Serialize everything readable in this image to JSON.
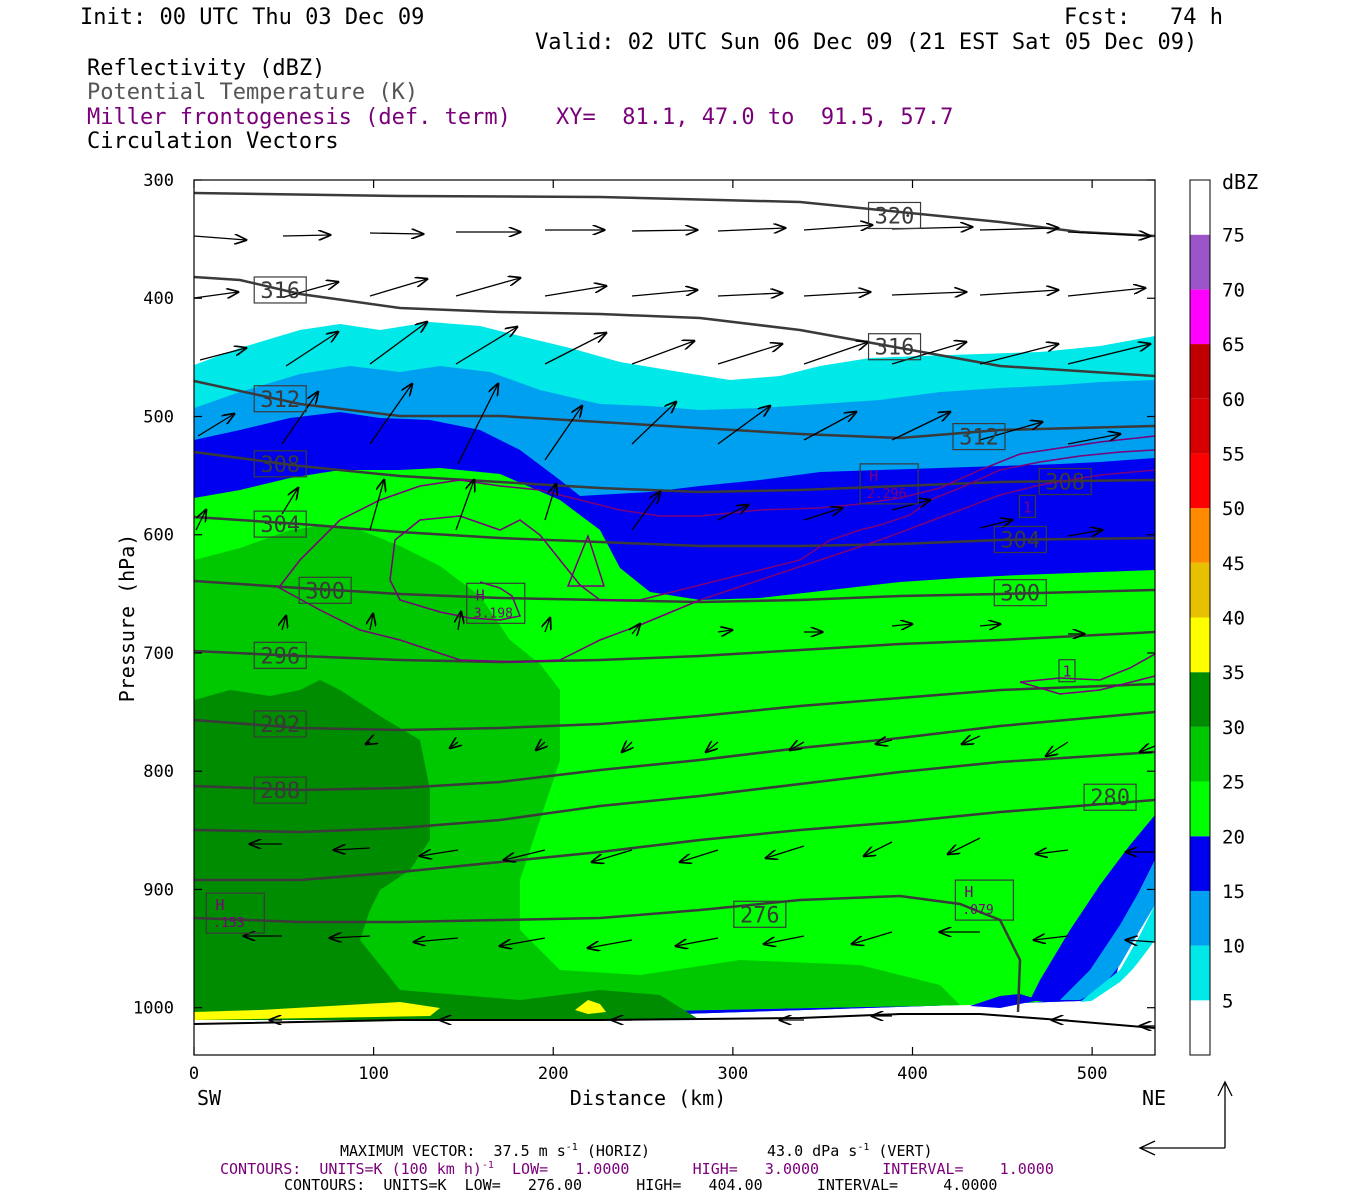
{
  "header": {
    "init": "Init: 00 UTC Thu 03 Dec 09",
    "fcst": "Fcst:   74 h",
    "valid": "Valid: 02 UTC Sun 06 Dec 09 (21 EST Sat 05 Dec 09)",
    "fields": [
      "Reflectivity (dBZ)",
      "Potential Temperature (K)",
      "Miller frontogenesis (def. term)",
      "Circulation Vectors"
    ],
    "xy": "XY=  81.1, 47.0 to  91.5, 57.7"
  },
  "footer": {
    "max_vector": "MAXIMUM VECTOR:  37.5 m s",
    "max_vector_sup": "-1",
    "max_vector_horiz": " (HORIZ)",
    "max_vector_vert": "43.0 dPa s",
    "max_vector_vert_sup": "-1",
    "max_vector_vert_tail": " (VERT)",
    "contours_fronto": "CONTOURS:  UNITS=K (100 km h)",
    "contours_fronto_sup": "-1",
    "contours_fronto_tail": "  LOW=   1.0000       HIGH=   3.0000       INTERVAL=    1.0000",
    "contours_theta": "CONTOURS:  UNITS=K  LOW=   276.00      HIGH=   404.00      INTERVAL=     4.0000"
  },
  "colors": {
    "theta": "#3a3a3a",
    "fronto": "#7a007a",
    "vectors": "#000000"
  },
  "chart_data": {
    "type": "contour-cross-section",
    "xlabel": "Distance (km)",
    "ylabel": "Pressure (hPa)",
    "x_ticks": [
      0,
      100,
      200,
      300,
      400,
      500
    ],
    "y_ticks": [
      300,
      400,
      500,
      600,
      700,
      800,
      900,
      1000
    ],
    "xlim": [
      0,
      535
    ],
    "ylim": [
      1040,
      300
    ],
    "x_end_labels": {
      "left": "SW",
      "right": "NE"
    },
    "colorbar": {
      "unit": "dBZ",
      "levels": [
        5,
        10,
        15,
        20,
        25,
        30,
        35,
        40,
        45,
        50,
        55,
        60,
        65,
        70,
        75
      ],
      "colors": [
        "#ffffff",
        "#00e8e8",
        "#00a0f0",
        "#0000f0",
        "#00ff00",
        "#00c800",
        "#008c00",
        "#ffff00",
        "#e8c000",
        "#ff8c00",
        "#ff0000",
        "#d60000",
        "#c00000",
        "#ff00ff",
        "#9a55c8",
        "#ffffff"
      ]
    },
    "theta_labels": [
      {
        "value": "320",
        "x": 390,
        "p": 330,
        "boxed": true
      },
      {
        "value": "316",
        "x": 48,
        "p": 393,
        "boxed": true
      },
      {
        "value": "316",
        "x": 390,
        "p": 441,
        "boxed": true
      },
      {
        "value": "312",
        "x": 48,
        "p": 485,
        "boxed": true
      },
      {
        "value": "312",
        "x": 437,
        "p": 517,
        "boxed": true
      },
      {
        "value": "308",
        "x": 48,
        "p": 540,
        "boxed": true
      },
      {
        "value": "308",
        "x": 485,
        "p": 555,
        "boxed": true
      },
      {
        "value": "304",
        "x": 48,
        "p": 591,
        "boxed": true
      },
      {
        "value": "304",
        "x": 460,
        "p": 604,
        "boxed": true
      },
      {
        "value": "300",
        "x": 73,
        "p": 647,
        "boxed": true
      },
      {
        "value": "300",
        "x": 460,
        "p": 649,
        "boxed": true
      },
      {
        "value": "296",
        "x": 48,
        "p": 702,
        "boxed": true
      },
      {
        "value": "292",
        "x": 48,
        "p": 760,
        "boxed": true
      },
      {
        "value": "288",
        "x": 48,
        "p": 816,
        "boxed": true
      },
      {
        "value": "280",
        "x": 510,
        "p": 822,
        "boxed": true
      },
      {
        "value": "276",
        "x": 315,
        "p": 921,
        "boxed": true
      }
    ],
    "fronto_labels": [
      {
        "kind": "H",
        "value": "3.198",
        "x": 168,
        "p": 658
      },
      {
        "kind": "H",
        "value": "2.296",
        "x": 387,
        "p": 557
      },
      {
        "kind": "H",
        "value": ".079",
        "x": 440,
        "p": 909
      },
      {
        "kind": "H",
        "value": ".153",
        "x": 23,
        "p": 920
      },
      {
        "kind": "num",
        "value": "1",
        "x": 464,
        "p": 576
      },
      {
        "kind": "num",
        "value": "1",
        "x": 486,
        "p": 715
      }
    ]
  }
}
